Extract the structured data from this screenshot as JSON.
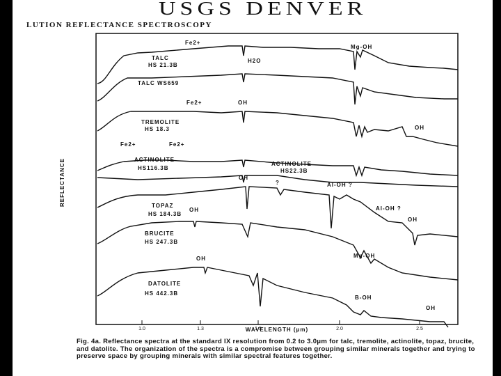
{
  "handwritten_title": "USGS DENVER",
  "header": "LUTION REFLECTANCE SPECTROSCOPY",
  "ylabel": "REFLECTANCE",
  "xlabel": "WAVELENGTH (μm)",
  "x_ticks": [
    "1.0",
    "1.3",
    "1.5",
    "2.0",
    "2.5"
  ],
  "spectra": [
    {
      "label": "TALC",
      "id": "HS 21.3B"
    },
    {
      "label": "TALC WS659"
    },
    {
      "label": "TREMOLITE",
      "id": "HS 18.3"
    },
    {
      "label": "ACTINOLITE",
      "id": "HS116.3B"
    },
    {
      "label": "ACTINOLITE",
      "id": "HS22.3B"
    },
    {
      "label": "TOPAZ",
      "id": "HS 184.3B"
    },
    {
      "label": "BRUCITE",
      "id": "HS 247.3B"
    },
    {
      "label": "DATOLITE",
      "id": "HS 442.3B"
    }
  ],
  "annotations": [
    "Fe2+",
    "H2O",
    "Mg-OH",
    "OH",
    "Fe2+",
    "Fe2+",
    "Fe2+",
    "OH",
    "?",
    "Al-OH ?",
    "Al-OH ?",
    "OH",
    "OH",
    "Mg-OH",
    "OH",
    "B-OH",
    "OH"
  ],
  "caption": "Fig. 4a.   Reflectance spectra at the standard IX resolution from 0.2 to 3.0μm for talc, tremolite, actinolite, topaz, brucite, and datolite. The organization of the spectra is a compromise between grouping similar minerals together and trying to preserve space by grouping minerals with similar spectral features together."
}
